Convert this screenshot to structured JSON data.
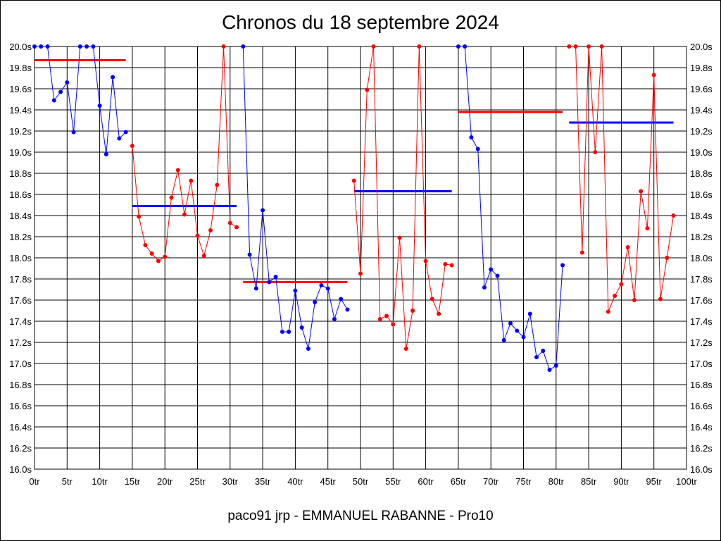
{
  "chart_data": {
    "type": "line",
    "title": "Chronos du 18 septembre 2024",
    "subtitle": "paco91 jrp - EMMANUEL RABANNE - Pro10",
    "xlabel": "",
    "ylabel": "",
    "xlim": [
      0,
      100
    ],
    "ylim": [
      16.0,
      20.0
    ],
    "x_tick_labels": [
      "0tr",
      "5tr",
      "10tr",
      "15tr",
      "20tr",
      "25tr",
      "30tr",
      "35tr",
      "40tr",
      "45tr",
      "50tr",
      "55tr",
      "60tr",
      "65tr",
      "70tr",
      "75tr",
      "80tr",
      "85tr",
      "90tr",
      "95tr",
      "100tr"
    ],
    "y_tick_labels": [
      "20.0s",
      "19.8s",
      "19.6s",
      "19.4s",
      "19.2s",
      "19.0s",
      "18.8s",
      "18.6s",
      "18.4s",
      "18.2s",
      "18.0s",
      "17.8s",
      "17.6s",
      "17.4s",
      "17.2s",
      "17.0s",
      "16.8s",
      "16.6s",
      "16.4s",
      "16.2s",
      "16.0s"
    ],
    "grid": true,
    "colors": {
      "blue": "#0000ff",
      "red": "#ff0000",
      "grid": "#000000"
    },
    "series": [
      {
        "color": "#0000ff",
        "x": [
          0,
          1,
          2,
          3,
          4,
          5,
          6,
          7,
          8,
          9,
          10,
          11,
          12,
          13,
          14
        ],
        "values": [
          20.0,
          20.0,
          20.0,
          19.49,
          19.57,
          19.66,
          19.19,
          20.0,
          20.0,
          20.0,
          19.44,
          18.98,
          19.71,
          19.13,
          19.19
        ],
        "average": 19.87
      },
      {
        "color": "#ff0000",
        "x": [
          15,
          16,
          17,
          18,
          19,
          20,
          21,
          22,
          23,
          24,
          25,
          26,
          27,
          28,
          29,
          30,
          31
        ],
        "values": [
          19.06,
          18.39,
          18.12,
          18.04,
          17.97,
          18.01,
          18.57,
          18.83,
          18.41,
          18.73,
          18.21,
          18.02,
          18.26,
          18.69,
          20.0,
          18.33,
          18.29
        ],
        "average": 18.49
      },
      {
        "color": "#0000ff",
        "x": [
          32,
          33,
          34,
          35,
          36,
          37,
          38,
          39,
          40,
          41,
          42,
          43,
          44,
          45,
          46,
          47,
          48
        ],
        "values": [
          20.0,
          18.03,
          17.71,
          18.45,
          17.77,
          17.82,
          17.3,
          17.3,
          17.69,
          17.34,
          17.14,
          17.58,
          17.74,
          17.71,
          17.42,
          17.61,
          17.51
        ],
        "average": 17.77
      },
      {
        "color": "#ff0000",
        "x": [
          49,
          50,
          51,
          52,
          53,
          54,
          55,
          56,
          57,
          58,
          59,
          60,
          61,
          62,
          63,
          64
        ],
        "values": [
          18.73,
          17.85,
          19.59,
          20.0,
          17.42,
          17.45,
          17.37,
          18.19,
          17.14,
          17.5,
          20.0,
          17.97,
          17.61,
          17.47,
          17.94,
          17.93
        ],
        "average": 18.63
      },
      {
        "color": "#0000ff",
        "x": [
          65,
          66,
          67,
          68,
          69,
          70,
          71,
          72,
          73,
          74,
          75,
          76,
          77,
          78,
          79,
          80,
          81
        ],
        "values": [
          20.0,
          20.0,
          19.14,
          19.03,
          17.72,
          17.89,
          17.83,
          17.22,
          17.38,
          17.31,
          17.25,
          17.47,
          17.06,
          17.12,
          16.94,
          16.98,
          17.93
        ],
        "average": 19.38
      },
      {
        "color": "#ff0000",
        "x": [
          82,
          83,
          84,
          85,
          86,
          87,
          88,
          89,
          90,
          91,
          92,
          93,
          94,
          95,
          96,
          97,
          98
        ],
        "values": [
          20.0,
          20.0,
          18.05,
          20.0,
          19.0,
          20.0,
          17.49,
          17.64,
          17.75,
          18.1,
          17.6,
          18.63,
          18.28,
          19.73,
          17.61,
          18.0,
          18.4
        ],
        "average": 19.28
      }
    ],
    "average_lines": [
      {
        "color": "#ff0000",
        "x": [
          0,
          14
        ],
        "y": 19.87
      },
      {
        "color": "#0000ff",
        "x": [
          15,
          31
        ],
        "y": 18.49
      },
      {
        "color": "#ff0000",
        "x": [
          32,
          48
        ],
        "y": 17.77
      },
      {
        "color": "#0000ff",
        "x": [
          49,
          64
        ],
        "y": 18.63
      },
      {
        "color": "#ff0000",
        "x": [
          65,
          81
        ],
        "y": 19.38
      },
      {
        "color": "#0000ff",
        "x": [
          82,
          98
        ],
        "y": 19.28
      }
    ]
  }
}
